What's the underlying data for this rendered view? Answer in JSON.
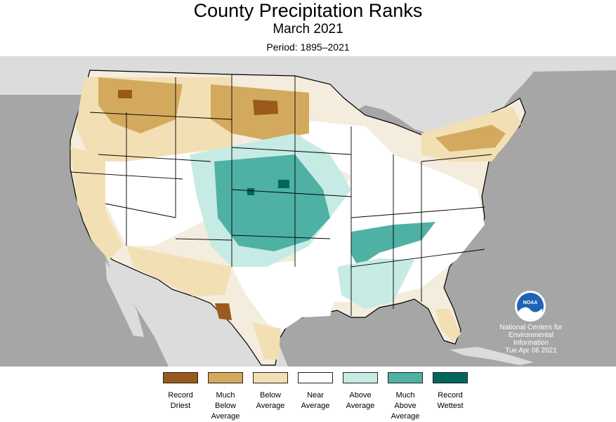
{
  "title": "County Precipitation Ranks",
  "subtitle": "March 2021",
  "period": "Period: 1895–2021",
  "credit": {
    "line1": "National Centers for",
    "line2": "Environmental",
    "line3": "Information",
    "line4": "Tue Apr 06 2021"
  },
  "logo": {
    "icon": "noaa-logo-icon",
    "text": "NOAA"
  },
  "legend": [
    {
      "label": "Record\nDriest",
      "color": "#9a5a1c"
    },
    {
      "label": "Much\nBelow\nAverage",
      "color": "#d3aa5d"
    },
    {
      "label": "Below\nAverage",
      "color": "#f2dfb4"
    },
    {
      "label": "Near\nAverage",
      "color": "#ffffff"
    },
    {
      "label": "Above\nAverage",
      "color": "#c6ebe4"
    },
    {
      "label": "Much\nAbove\nAverage",
      "color": "#4fb0a4"
    },
    {
      "label": "Record\nWettest",
      "color": "#00665e"
    }
  ],
  "map_colors": {
    "background": "#a6a6a6",
    "land": "#dcdcdc",
    "water": "#a6a6a6",
    "county_border": "#666666",
    "state_border": "#000000"
  }
}
